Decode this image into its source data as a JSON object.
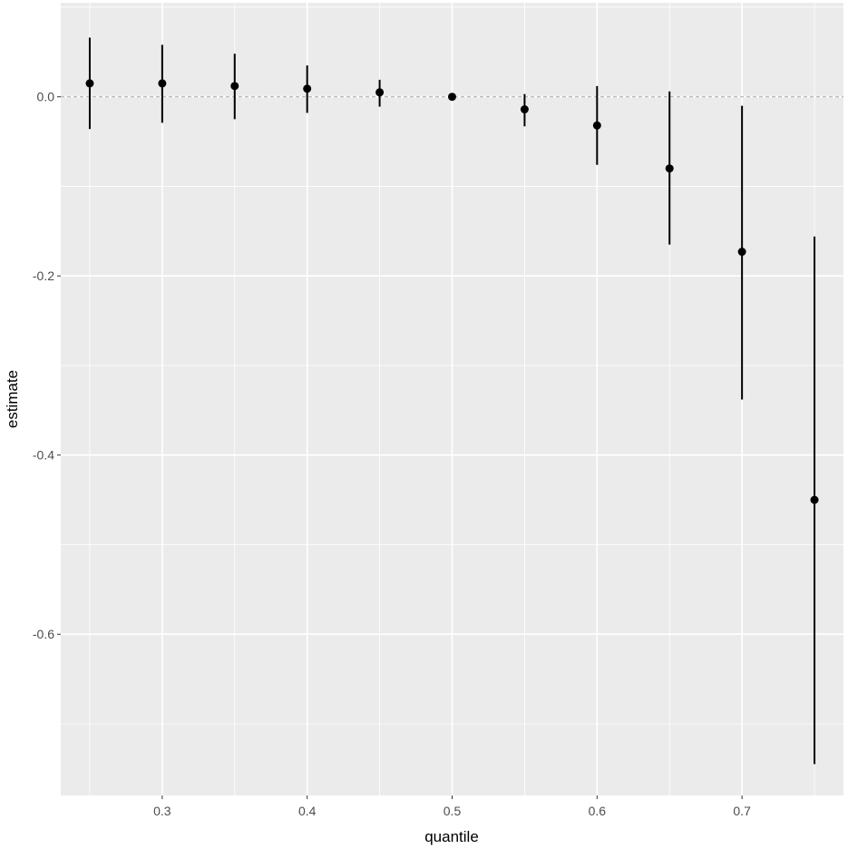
{
  "chart_data": {
    "type": "scatter",
    "xlabel": "quantile",
    "ylabel": "estimate",
    "xlim": [
      0.23,
      0.77
    ],
    "ylim": [
      -0.78,
      0.105
    ],
    "x_ticks": [
      0.3,
      0.4,
      0.5,
      0.6,
      0.7
    ],
    "x_tick_labels": [
      "0.3",
      "0.4",
      "0.5",
      "0.6",
      "0.7"
    ],
    "y_ticks": [
      0.0,
      -0.2,
      -0.4,
      -0.6
    ],
    "y_tick_labels": [
      "0.0",
      "-0.2",
      "-0.4",
      "-0.6"
    ],
    "reference_line": 0.0,
    "grid": true,
    "points": [
      {
        "x": 0.25,
        "y": 0.015,
        "lower": -0.036,
        "upper": 0.066
      },
      {
        "x": 0.3,
        "y": 0.015,
        "lower": -0.029,
        "upper": 0.058
      },
      {
        "x": 0.35,
        "y": 0.012,
        "lower": -0.025,
        "upper": 0.048
      },
      {
        "x": 0.4,
        "y": 0.009,
        "lower": -0.018,
        "upper": 0.035
      },
      {
        "x": 0.45,
        "y": 0.005,
        "lower": -0.011,
        "upper": 0.019
      },
      {
        "x": 0.5,
        "y": 0.0,
        "lower": 0.0,
        "upper": 0.0
      },
      {
        "x": 0.55,
        "y": -0.014,
        "lower": -0.033,
        "upper": 0.003
      },
      {
        "x": 0.6,
        "y": -0.032,
        "lower": -0.076,
        "upper": 0.012
      },
      {
        "x": 0.65,
        "y": -0.08,
        "lower": -0.165,
        "upper": 0.006
      },
      {
        "x": 0.7,
        "y": -0.173,
        "lower": -0.338,
        "upper": -0.01
      },
      {
        "x": 0.75,
        "y": -0.45,
        "lower": -0.745,
        "upper": -0.156
      }
    ],
    "colors": {
      "panel": "#ebebeb",
      "grid": "#ffffff",
      "point": "#000000",
      "reference": "#a6a6a6"
    }
  }
}
